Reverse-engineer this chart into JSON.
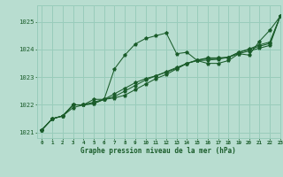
{
  "title": "Graphe pression niveau de la mer (hPa)",
  "background_color": "#b8ddd0",
  "grid_color": "#99ccbb",
  "line_color": "#1a5c2a",
  "text_color": "#1a5c2a",
  "xlim": [
    -0.5,
    23
  ],
  "ylim": [
    1020.8,
    1025.6
  ],
  "yticks": [
    1021,
    1022,
    1023,
    1024,
    1025
  ],
  "xticks": [
    0,
    1,
    2,
    3,
    4,
    5,
    6,
    7,
    8,
    9,
    10,
    11,
    12,
    13,
    14,
    15,
    16,
    17,
    18,
    19,
    20,
    21,
    22,
    23
  ],
  "series": [
    [
      1021.1,
      1021.5,
      1021.6,
      1021.9,
      1022.0,
      1022.2,
      1022.2,
      1023.3,
      1023.8,
      1024.2,
      1024.4,
      1024.5,
      1024.6,
      1023.85,
      1023.9,
      1023.6,
      1023.5,
      1023.5,
      1023.6,
      1023.85,
      1023.8,
      1024.3,
      1024.7,
      1025.2
    ],
    [
      1021.1,
      1021.5,
      1021.6,
      1022.0,
      1022.0,
      1022.05,
      1022.2,
      1022.25,
      1022.35,
      1022.55,
      1022.75,
      1022.95,
      1023.1,
      1023.3,
      1023.5,
      1023.6,
      1023.62,
      1023.65,
      1023.72,
      1023.85,
      1023.95,
      1024.05,
      1024.15,
      1025.2
    ],
    [
      1021.1,
      1021.5,
      1021.6,
      1022.0,
      1022.0,
      1022.05,
      1022.2,
      1022.3,
      1022.5,
      1022.7,
      1022.9,
      1023.05,
      1023.2,
      1023.35,
      1023.5,
      1023.62,
      1023.67,
      1023.68,
      1023.72,
      1023.9,
      1024.0,
      1024.12,
      1024.22,
      1025.2
    ],
    [
      1021.1,
      1021.5,
      1021.6,
      1022.0,
      1022.0,
      1022.1,
      1022.2,
      1022.4,
      1022.6,
      1022.8,
      1022.95,
      1023.05,
      1023.18,
      1023.32,
      1023.5,
      1023.62,
      1023.7,
      1023.7,
      1023.72,
      1023.9,
      1024.02,
      1024.17,
      1024.27,
      1025.2
    ]
  ]
}
